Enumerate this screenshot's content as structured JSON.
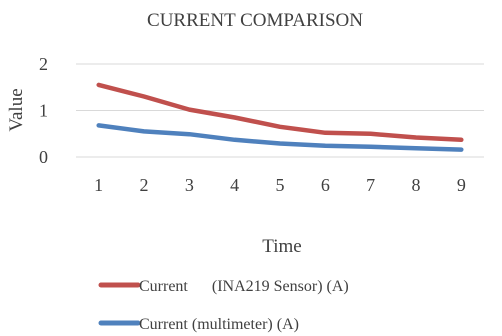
{
  "chart_data": {
    "type": "line",
    "title": "CURRENT COMPARISON",
    "xlabel": "Time",
    "ylabel": "Value",
    "categories": [
      "1",
      "2",
      "3",
      "4",
      "5",
      "6",
      "7",
      "8",
      "9"
    ],
    "ylim": [
      0,
      2
    ],
    "yticks": [
      "0",
      "1",
      "2"
    ],
    "grid": true,
    "legend_position": "bottom",
    "series": [
      {
        "name": "Current      (INA219 Sensor) (A)",
        "color": "#C0504D",
        "values": [
          1.55,
          1.3,
          1.02,
          0.85,
          0.65,
          0.52,
          0.5,
          0.42,
          0.37
        ]
      },
      {
        "name": "Current (multimeter) (A)",
        "color": "#4F81BD",
        "values": [
          0.68,
          0.55,
          0.49,
          0.37,
          0.29,
          0.24,
          0.22,
          0.19,
          0.16
        ]
      }
    ]
  }
}
